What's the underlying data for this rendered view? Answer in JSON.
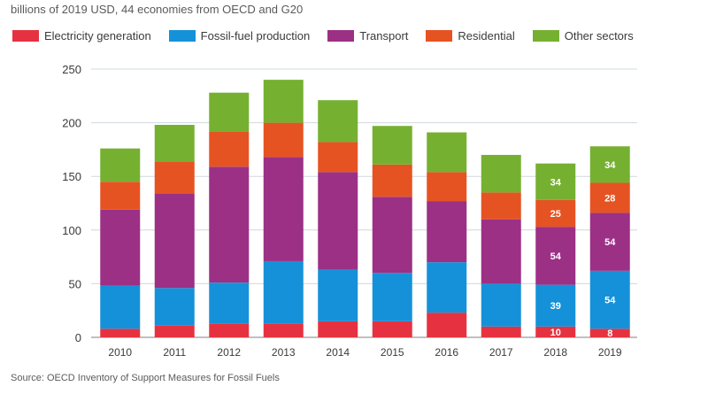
{
  "subtitle": "billions of 2019 USD, 44 economies from OECD and G20",
  "source": "Source: OECD Inventory of Support Measures for Fossil Fuels",
  "chart_data": {
    "type": "bar",
    "stacked": true,
    "title": "",
    "xlabel": "",
    "ylabel": "",
    "ylim": [
      0,
      250
    ],
    "yticks": [
      0,
      50,
      100,
      150,
      200,
      250
    ],
    "categories": [
      "2010",
      "2011",
      "2012",
      "2013",
      "2014",
      "2015",
      "2016",
      "2017",
      "2018",
      "2019"
    ],
    "legend_position": "top",
    "grid": "horizontal",
    "series": [
      {
        "name": "Electricity generation",
        "color": "#e63240",
        "values": [
          8,
          11,
          13,
          13,
          15,
          15,
          23,
          10,
          10,
          8
        ]
      },
      {
        "name": "Fossil-fuel production",
        "color": "#1591d9",
        "values": [
          40,
          35,
          38,
          58,
          48,
          45,
          47,
          40,
          39,
          54
        ]
      },
      {
        "name": "Transport",
        "color": "#9b3085",
        "values": [
          71,
          88,
          108,
          97,
          91,
          71,
          57,
          60,
          54,
          54
        ]
      },
      {
        "name": "Residential",
        "color": "#e65322",
        "values": [
          26,
          30,
          33,
          32,
          28,
          30,
          27,
          25,
          25,
          28
        ]
      },
      {
        "name": "Other sectors",
        "color": "#76b031",
        "values": [
          31,
          34,
          36,
          40,
          39,
          36,
          37,
          35,
          34,
          34
        ]
      }
    ],
    "data_labels": [
      {
        "category": "2018",
        "values": [
          "10",
          "39",
          "54",
          "25",
          "34"
        ]
      },
      {
        "category": "2019",
        "values": [
          "8",
          "54",
          "54",
          "28",
          "34"
        ]
      }
    ]
  }
}
